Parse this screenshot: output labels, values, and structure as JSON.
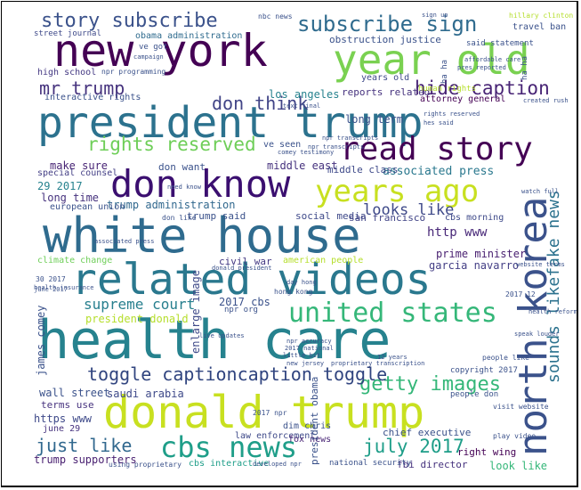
{
  "words": [
    {
      "text": "health care",
      "color": "#26828e"
    },
    {
      "text": "white house",
      "color": "#2f6b8e"
    },
    {
      "text": "related videos",
      "color": "#2a788e"
    },
    {
      "text": "president trump",
      "color": "#2c728e"
    },
    {
      "text": "new york",
      "color": "#440154"
    },
    {
      "text": "donald trump",
      "color": "#c8e020"
    },
    {
      "text": "year old",
      "color": "#7ad151"
    },
    {
      "text": "don know",
      "color": "#3b0f70"
    },
    {
      "text": "north korea",
      "color": "#3b528b"
    },
    {
      "text": "read story",
      "color": "#440154"
    },
    {
      "text": "years ago",
      "color": "#c8e020"
    },
    {
      "text": "united states",
      "color": "#35b779"
    },
    {
      "text": "cbs news",
      "color": "#1f9e89"
    },
    {
      "text": "story subscribe",
      "color": "#3b528b"
    },
    {
      "text": "subscribe sign",
      "color": "#2f6b8e"
    },
    {
      "text": "getty images",
      "color": "#35b779"
    },
    {
      "text": "rights reserved",
      "color": "#6ece58"
    },
    {
      "text": "toggle captioncaption toggle",
      "color": "#30447f"
    },
    {
      "text": "hide caption",
      "color": "#482475"
    },
    {
      "text": "july 2017",
      "color": "#1f9e89"
    },
    {
      "text": "sounds likefake news",
      "color": "#2c728e"
    },
    {
      "text": "just like",
      "color": "#31688e"
    },
    {
      "text": "supreme court",
      "color": "#277f8e"
    },
    {
      "text": "mr trump",
      "color": "#46337e"
    },
    {
      "text": "don think",
      "color": "#414487"
    },
    {
      "text": "looks like",
      "color": "#3e4989"
    },
    {
      "text": "los angeles",
      "color": "#26828e"
    },
    {
      "text": "reports related",
      "color": "#46327e"
    },
    {
      "text": "obstruction justice",
      "color": "#3b528b"
    },
    {
      "text": "associated press",
      "color": "#2a788e"
    },
    {
      "text": "long term",
      "color": "#3b528b"
    },
    {
      "text": "middle east",
      "color": "#46327e"
    },
    {
      "text": "http www",
      "color": "#482878"
    },
    {
      "text": "prime minister",
      "color": "#481f70"
    },
    {
      "text": "garcia navarro",
      "color": "#433e85"
    },
    {
      "text": "cbs morning",
      "color": "#3e4989"
    },
    {
      "text": "wall street",
      "color": "#3b528b"
    },
    {
      "text": "saudi arabia",
      "color": "#3e4989"
    },
    {
      "text": "trump administration",
      "color": "#31688e"
    },
    {
      "text": "trump said",
      "color": "#3b528b"
    },
    {
      "text": "social media",
      "color": "#3e4989"
    },
    {
      "text": "san francisco",
      "color": "#414487"
    },
    {
      "text": "civil war",
      "color": "#443983"
    },
    {
      "text": "american people",
      "color": "#b5de2b"
    },
    {
      "text": "make sure",
      "color": "#482475"
    },
    {
      "text": "long time",
      "color": "#46327e"
    },
    {
      "text": "29 2017",
      "color": "#26828e"
    },
    {
      "text": "special counsel",
      "color": "#433e85"
    },
    {
      "text": "european union",
      "color": "#3b528b"
    },
    {
      "text": "don want",
      "color": "#3b528b"
    },
    {
      "text": "middle class",
      "color": "#3e4989"
    },
    {
      "text": "climate change",
      "color": "#6ece58"
    },
    {
      "text": "president donald",
      "color": "#b5de2b"
    },
    {
      "text": "james comey",
      "color": "#3b528b"
    },
    {
      "text": "enlarge image",
      "color": "#3e4989"
    },
    {
      "text": "2017 cbs",
      "color": "#3b528b"
    },
    {
      "text": "law enforcement",
      "color": "#3e4989"
    },
    {
      "text": "chief executive",
      "color": "#3b528b"
    },
    {
      "text": "fox news",
      "color": "#482475"
    },
    {
      "text": "fbi director",
      "color": "#46327e"
    },
    {
      "text": "cbs interactive",
      "color": "#1f9e89"
    },
    {
      "text": "right wing",
      "color": "#440154"
    },
    {
      "text": "look like",
      "color": "#35b779"
    },
    {
      "text": "trump supporters",
      "color": "#481f70"
    },
    {
      "text": "https www",
      "color": "#3e4989"
    },
    {
      "text": "terms use",
      "color": "#46327e"
    },
    {
      "text": "june 29",
      "color": "#46327e"
    },
    {
      "text": "high school",
      "color": "#443983"
    },
    {
      "text": "interactive rights",
      "color": "#3b528b"
    },
    {
      "text": "years old",
      "color": "#3e4989"
    },
    {
      "text": "attorney general",
      "color": "#440154"
    },
    {
      "text": "human rights",
      "color": "#b5de2b"
    },
    {
      "text": "travel ban",
      "color": "#3b528b"
    },
    {
      "text": "said statement",
      "color": "#3b528b"
    },
    {
      "text": "obama administration",
      "color": "#2f6b8e"
    },
    {
      "text": "street journal",
      "color": "#3e4989"
    },
    {
      "text": "npr programming",
      "color": "#3b528b"
    },
    {
      "text": "copyright 2017",
      "color": "#3b528b"
    },
    {
      "text": "people don",
      "color": "#3b528b"
    },
    {
      "text": "people like",
      "color": "#3b528b"
    },
    {
      "text": "president obama",
      "color": "#3b528b"
    },
    {
      "text": "national security",
      "color": "#3b528b"
    },
    {
      "text": "visit website",
      "color": "#3b528b"
    },
    {
      "text": "hillary clinton",
      "color": "#b5de2b"
    },
    {
      "text": "ve seen",
      "color": "#3b528b"
    },
    {
      "text": "don like",
      "color": "#3b528b"
    },
    {
      "text": "nbc news",
      "color": "#3b528b"
    },
    {
      "text": "ve got",
      "color": "#3b528b"
    },
    {
      "text": "30 2017",
      "color": "#3b528b"
    },
    {
      "text": "using proprietary",
      "color": "#3b528b"
    },
    {
      "text": "npr org",
      "color": "#3b528b"
    },
    {
      "text": "hong kong",
      "color": "#3b528b"
    },
    {
      "text": "2017 12",
      "color": "#3b528b"
    },
    {
      "text": "play video",
      "color": "#3b528b"
    },
    {
      "text": "dim chris",
      "color": "#3b528b"
    },
    {
      "text": "npr transcripts",
      "color": "#3b528b"
    },
    {
      "text": "comey testimony",
      "color": "#3b528b"
    },
    {
      "text": "website terms",
      "color": "#3b528b"
    },
    {
      "text": "health insurance",
      "color": "#3b528b"
    },
    {
      "text": "proprietary transcription",
      "color": "#3b528b"
    },
    {
      "text": "ha ha",
      "color": "#3b528b"
    },
    {
      "text": "2017 npr",
      "color": "#3b528b"
    },
    {
      "text": "little bit",
      "color": "#3b528b"
    },
    {
      "text": "new jersey",
      "color": "#3b528b"
    },
    {
      "text": "june 2017",
      "color": "#3b528b"
    },
    {
      "text": "developed npr",
      "color": "#3b528b"
    },
    {
      "text": "12 years",
      "color": "#3b528b"
    },
    {
      "text": "2017 national",
      "color": "#3b528b"
    },
    {
      "text": "rights reserved",
      "color": "#3b528b"
    },
    {
      "text": "pres reported",
      "color": "#3b528b"
    },
    {
      "text": "watch full",
      "color": "#3b528b"
    },
    {
      "text": "npr accuracy",
      "color": "#3b528b"
    },
    {
      "text": "text final",
      "color": "#3b528b"
    },
    {
      "text": "health reform",
      "color": "#3b528b"
    },
    {
      "text": "created rush",
      "color": "#3b528b"
    },
    {
      "text": "affordable care",
      "color": "#3b528b"
    },
    {
      "text": "speak louder",
      "color": "#3b528b"
    },
    {
      "text": "ha ha",
      "color": "#3b528b"
    },
    {
      "text": "need know",
      "color": "#3b528b"
    },
    {
      "text": "live updates",
      "color": "#3b528b"
    },
    {
      "text": "day hong",
      "color": "#3b528b"
    },
    {
      "text": "donald president",
      "color": "#3b528b"
    },
    {
      "text": "associated press",
      "color": "#3b528b"
    },
    {
      "text": "campaign",
      "color": "#3b528b"
    },
    {
      "text": "npr transcripts",
      "color": "#3b528b"
    },
    {
      "text": "hes said",
      "color": "#3b528b"
    },
    {
      "text": "sign up",
      "color": "#3b528b"
    }
  ]
}
